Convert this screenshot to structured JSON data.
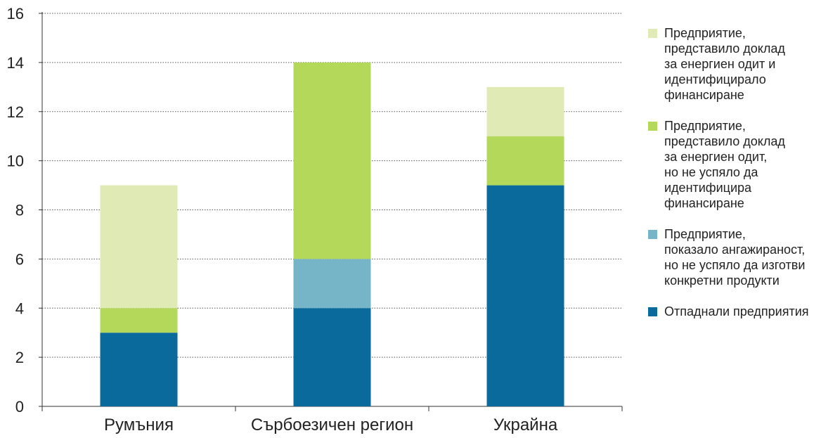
{
  "chart_data": {
    "type": "bar",
    "stacked": true,
    "categories": [
      "Румъния",
      "Сърбоезичен регион",
      "Украйна"
    ],
    "ylim": [
      0,
      16
    ],
    "yticks": [
      0,
      2,
      4,
      6,
      8,
      10,
      12,
      14,
      16
    ],
    "grid": true,
    "legend_position": "right",
    "series": [
      {
        "name": "Отпаднали предприятия",
        "color": "#0a6a9c",
        "values": [
          3,
          4,
          9
        ]
      },
      {
        "name": "Предприятие, показало ангажираност, но не успяло да изготви конкретни продукти",
        "color": "#76b5c8",
        "values": [
          0,
          2,
          0
        ]
      },
      {
        "name": "Предприятие, представило доклад за енергиен одит, но не успяло да идентифицира финансиране",
        "color": "#b4d85a",
        "values": [
          1,
          8,
          2
        ]
      },
      {
        "name": "Предприятие, представило доклад за енергиен одит и идентифицирало финансиране",
        "color": "#dfeab4",
        "values": [
          5,
          0,
          2
        ]
      }
    ],
    "legend": [
      {
        "lines": [
          "Предприятие,",
          "представило доклад",
          "за енергиен одит и",
          "идентифицирало",
          "финансиране"
        ],
        "color": "#dfeab4"
      },
      {
        "lines": [
          "Предприятие,",
          "представило доклад",
          "за енергиен одит,",
          "но не успяло да",
          "идентифицира",
          "финансиране"
        ],
        "color": "#b4d85a"
      },
      {
        "lines": [
          "Предприятие,",
          "показало ангажираност,",
          "но не успяло да изготви",
          "конкретни продукти"
        ],
        "color": "#76b5c8"
      },
      {
        "lines": [
          "Отпаднали предприятия"
        ],
        "color": "#0a6a9c"
      }
    ]
  }
}
